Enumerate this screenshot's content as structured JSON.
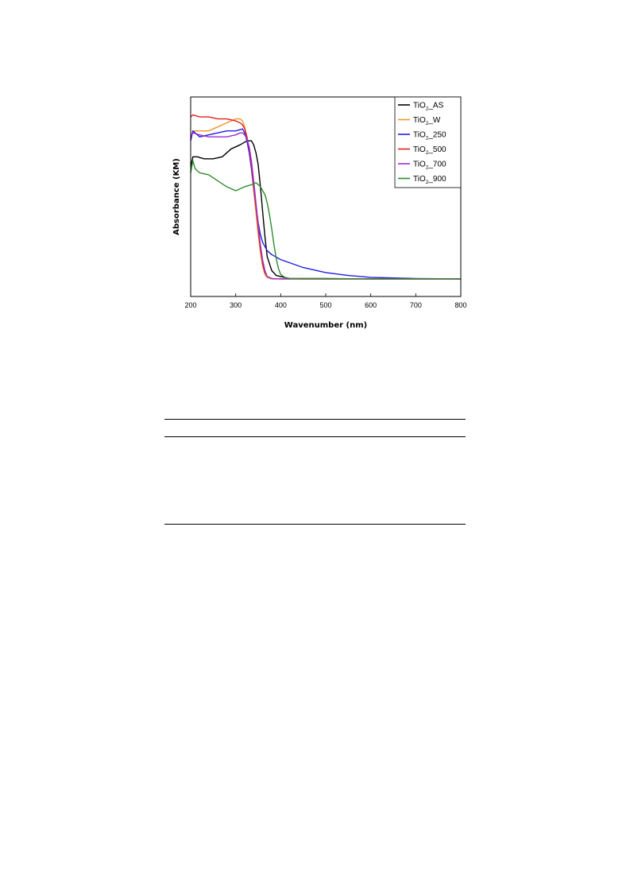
{
  "chart_data": {
    "type": "line",
    "xlabel": "Wavenumber (nm)",
    "ylabel": "Absorbance (KM)",
    "xlim": [
      200,
      800
    ],
    "ylim": [
      0,
      1
    ],
    "xticks": [
      200,
      300,
      400,
      500,
      600,
      700,
      800
    ],
    "grid": false,
    "legend_position": "top-right",
    "series": [
      {
        "name": "TiO2_AS",
        "legend_main": "TiO",
        "legend_sub": "2",
        "legend_rest": "_AS",
        "color": "#000000",
        "x": [
          200,
          205,
          215,
          230,
          250,
          270,
          290,
          310,
          325,
          335,
          340,
          345,
          350,
          355,
          360,
          365,
          370,
          380,
          390,
          400,
          420,
          450,
          500,
          600,
          700,
          800
        ],
        "y": [
          0.65,
          0.7,
          0.7,
          0.69,
          0.69,
          0.7,
          0.74,
          0.76,
          0.78,
          0.78,
          0.76,
          0.72,
          0.66,
          0.55,
          0.42,
          0.3,
          0.2,
          0.13,
          0.105,
          0.1,
          0.09,
          0.09,
          0.09,
          0.088,
          0.088,
          0.088
        ]
      },
      {
        "name": "TiO2_W",
        "legend_main": "TiO",
        "legend_sub": "2",
        "legend_rest": "_W",
        "color": "#F0962C",
        "x": [
          200,
          205,
          220,
          240,
          260,
          280,
          300,
          310,
          315,
          320,
          325,
          330,
          335,
          340,
          345,
          350,
          355,
          360,
          365,
          370,
          380,
          400,
          450,
          500,
          800
        ],
        "y": [
          0.8,
          0.83,
          0.83,
          0.83,
          0.85,
          0.87,
          0.89,
          0.89,
          0.88,
          0.85,
          0.8,
          0.73,
          0.64,
          0.53,
          0.42,
          0.31,
          0.22,
          0.15,
          0.11,
          0.095,
          0.088,
          0.088,
          0.088,
          0.088,
          0.088
        ]
      },
      {
        "name": "TiO2_250",
        "legend_main": "TiO",
        "legend_sub": "2",
        "legend_rest": "_250",
        "color": "#2020E0",
        "x": [
          200,
          205,
          220,
          240,
          260,
          280,
          300,
          315,
          320,
          325,
          330,
          335,
          340,
          345,
          350,
          355,
          360,
          370,
          380,
          400,
          450,
          500,
          550,
          600,
          700,
          800
        ],
        "y": [
          0.78,
          0.83,
          0.8,
          0.81,
          0.82,
          0.83,
          0.83,
          0.84,
          0.82,
          0.78,
          0.72,
          0.64,
          0.55,
          0.45,
          0.37,
          0.31,
          0.27,
          0.23,
          0.21,
          0.185,
          0.145,
          0.12,
          0.105,
          0.096,
          0.09,
          0.088
        ]
      },
      {
        "name": "TiO2_500",
        "legend_main": "TiO",
        "legend_sub": "2",
        "legend_rest": "_500",
        "color": "#E02020",
        "x": [
          200,
          205,
          220,
          240,
          260,
          280,
          300,
          310,
          315,
          320,
          325,
          330,
          335,
          340,
          345,
          350,
          355,
          360,
          365,
          370,
          380,
          400,
          450,
          500,
          800
        ],
        "y": [
          0.9,
          0.91,
          0.9,
          0.9,
          0.89,
          0.89,
          0.88,
          0.87,
          0.86,
          0.84,
          0.8,
          0.74,
          0.66,
          0.56,
          0.45,
          0.34,
          0.24,
          0.16,
          0.12,
          0.1,
          0.09,
          0.088,
          0.088,
          0.088,
          0.088
        ]
      },
      {
        "name": "TiO2_700",
        "legend_main": "TiO",
        "legend_sub": "2",
        "legend_rest": "_700",
        "color": "#9B30D0",
        "x": [
          200,
          205,
          220,
          240,
          260,
          280,
          300,
          310,
          315,
          320,
          325,
          330,
          335,
          340,
          345,
          350,
          355,
          360,
          365,
          370,
          380,
          400,
          450,
          500,
          800
        ],
        "y": [
          0.8,
          0.82,
          0.81,
          0.8,
          0.8,
          0.8,
          0.81,
          0.82,
          0.82,
          0.81,
          0.79,
          0.75,
          0.68,
          0.58,
          0.47,
          0.36,
          0.26,
          0.18,
          0.13,
          0.1,
          0.09,
          0.088,
          0.088,
          0.088,
          0.088
        ]
      },
      {
        "name": "TiO2_900",
        "legend_main": "TiO",
        "legend_sub": "2",
        "legend_rest": "_900",
        "color": "#2E8B2E",
        "x": [
          200,
          205,
          210,
          220,
          240,
          260,
          280,
          300,
          320,
          335,
          345,
          355,
          365,
          370,
          375,
          380,
          385,
          390,
          395,
          400,
          410,
          420,
          450,
          500,
          800
        ],
        "y": [
          0.62,
          0.68,
          0.64,
          0.62,
          0.61,
          0.58,
          0.55,
          0.53,
          0.55,
          0.56,
          0.57,
          0.55,
          0.51,
          0.47,
          0.41,
          0.34,
          0.26,
          0.19,
          0.14,
          0.11,
          0.095,
          0.09,
          0.088,
          0.088,
          0.088
        ]
      }
    ]
  }
}
